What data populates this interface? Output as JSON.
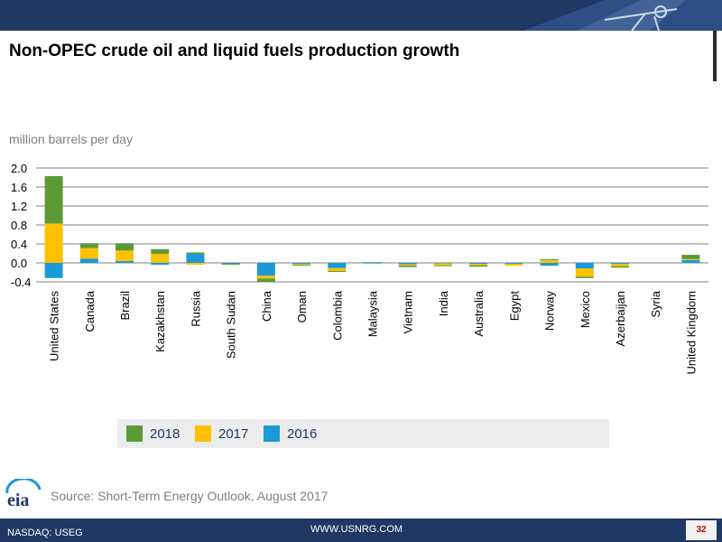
{
  "header": {
    "title": "Non-OPEC crude oil and liquid fuels production growth"
  },
  "source": "Source: Short-Term Energy Outlook, August 2017",
  "logo_text": "eia",
  "footer": {
    "left": "NASDAQ: USEG",
    "center": "WWW.USNRG.COM",
    "page": "32"
  },
  "colors": {
    "band": "#1f3864",
    "s2018": "#5b9b36",
    "s2017": "#ffc000",
    "s2016": "#1a9ad6",
    "grid": "#bfbfbf"
  },
  "chart_data": {
    "type": "bar",
    "stacked": true,
    "ylabel": "million barrels per day",
    "yticks": [
      "2.0",
      "1.6",
      "1.2",
      "0.8",
      "0.4",
      "0.0",
      "-0.4"
    ],
    "ylim": [
      -0.4,
      2.0
    ],
    "grid": true,
    "legend_position": "bottom",
    "categories": [
      "United States",
      "Canada",
      "Brazil",
      "Kazakhstan",
      "Russia",
      "South Sudan",
      "China",
      "Oman",
      "Colombia",
      "Malaysia",
      "Vietnam",
      "India",
      "Australia",
      "Egypt",
      "Norway",
      "Mexico",
      "Azerbaijan",
      "Syria",
      "United Kingdom"
    ],
    "series": [
      {
        "name": "2016",
        "color": "#1a9ad6",
        "values": [
          -0.32,
          0.09,
          0.04,
          -0.04,
          0.19,
          -0.02,
          -0.27,
          -0.02,
          -0.11,
          0.01,
          -0.03,
          -0.01,
          -0.02,
          -0.02,
          -0.06,
          -0.12,
          -0.02,
          0.0,
          0.06
        ]
      },
      {
        "name": "2017",
        "color": "#ffc000",
        "values": [
          0.83,
          0.22,
          0.22,
          0.19,
          -0.04,
          0.0,
          -0.06,
          -0.02,
          -0.06,
          0.0,
          -0.03,
          -0.04,
          -0.03,
          -0.04,
          0.06,
          -0.17,
          -0.05,
          0.0,
          0.02
        ]
      },
      {
        "name": "2018",
        "color": "#5b9b36",
        "values": [
          1.0,
          0.1,
          0.15,
          0.1,
          0.03,
          -0.02,
          -0.07,
          -0.02,
          -0.02,
          0.0,
          -0.03,
          -0.01,
          -0.03,
          0.0,
          0.02,
          -0.03,
          -0.03,
          0.0,
          0.09
        ]
      }
    ]
  }
}
